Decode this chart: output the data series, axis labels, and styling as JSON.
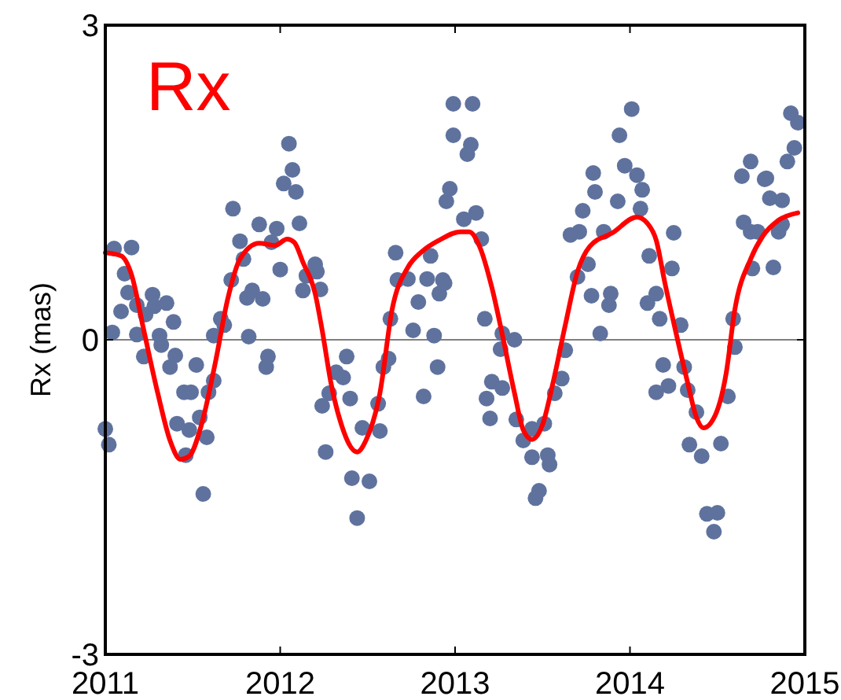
{
  "chart_data": {
    "type": "scatter",
    "title": "Rx",
    "ylabel": "Rx (mas)",
    "xlim": [
      2011,
      2015
    ],
    "ylim": [
      -3,
      3
    ],
    "xticks": [
      2011,
      2012,
      2013,
      2014,
      2015
    ],
    "yticks": [
      -3,
      0,
      3
    ],
    "grid": false,
    "marker": "circle",
    "ref_lines": [
      {
        "axis": "y",
        "value": 0,
        "color": "#808080"
      }
    ],
    "series": [
      {
        "color": "#5f729e",
        "x": [
          2011.0,
          2011.02,
          2011.04,
          2011.05,
          2011.15,
          2011.11,
          2011.09,
          2011.13,
          2011.18,
          2011.18,
          2011.22,
          2011.23,
          2011.27,
          2011.28,
          2011.31,
          2011.32,
          2011.35,
          2011.39,
          2011.4,
          2011.37,
          2011.45,
          2011.49,
          2011.52,
          2011.41,
          2011.48,
          2011.46,
          2011.54,
          2011.58,
          2011.56,
          2011.59,
          2011.62,
          2011.62,
          2011.66,
          2011.68,
          2011.72,
          2011.73,
          2011.77,
          2011.79,
          2011.81,
          2011.82,
          2011.84,
          2011.88,
          2011.9,
          2011.93,
          2011.92,
          2011.95,
          2011.98,
          2012.0,
          2012.02,
          2012.05,
          2012.07,
          2012.09,
          2012.11,
          2012.13,
          2012.15,
          2012.2,
          2012.21,
          2012.23,
          2012.24,
          2012.26,
          2012.28,
          2012.32,
          2012.38,
          2012.36,
          2012.4,
          2012.41,
          2012.44,
          2012.47,
          2012.51,
          2012.56,
          2012.57,
          2012.59,
          2012.62,
          2012.63,
          2012.66,
          2012.67,
          2012.73,
          2012.76,
          2012.79,
          2012.82,
          2012.84,
          2012.86,
          2012.88,
          2012.9,
          2012.91,
          2012.93,
          2012.95,
          2012.97,
          2012.99,
          2012.99,
          2013.1,
          2013.09,
          2013.07,
          2013.05,
          2013.12,
          2013.15,
          2012.94,
          2013.17,
          2013.27,
          2013.34,
          2013.26,
          2013.21,
          2013.18,
          2013.27,
          2013.2,
          2013.35,
          2013.39,
          2013.44,
          2013.51,
          2013.44,
          2013.53,
          2013.54,
          2013.48,
          2013.46,
          2013.57,
          2013.61,
          2013.63,
          2013.7,
          2013.76,
          2013.66,
          2013.71,
          2013.73,
          2013.78,
          2013.79,
          2013.8,
          2013.83,
          2013.85,
          2013.89,
          2013.88,
          2013.93,
          2013.94,
          2013.97,
          2014.04,
          2014.01,
          2014.07,
          2014.06,
          2014.11,
          2014.1,
          2014.15,
          2014.17,
          2014.24,
          2014.25,
          2014.19,
          2014.15,
          2014.22,
          2014.29,
          2014.31,
          2014.33,
          2014.38,
          2014.34,
          2014.41,
          2014.44,
          2014.5,
          2014.48,
          2014.52,
          2014.56,
          2014.6,
          2014.59,
          2014.64,
          2014.69,
          2014.65,
          2014.69,
          2014.73,
          2014.7,
          2014.82,
          2014.77,
          2014.78,
          2014.8,
          2014.87,
          2014.85,
          2014.87,
          2014.9,
          2014.92,
          2014.96,
          2014.94
        ],
        "values": [
          -0.85,
          -1.0,
          0.07,
          0.87,
          0.88,
          0.63,
          0.27,
          0.45,
          0.33,
          0.05,
          -0.16,
          0.24,
          0.43,
          0.32,
          0.04,
          -0.05,
          0.35,
          0.17,
          -0.15,
          -0.26,
          -0.5,
          -0.5,
          -0.24,
          -0.8,
          -0.86,
          -1.1,
          -0.74,
          -0.93,
          -1.47,
          -0.5,
          -0.39,
          0.04,
          0.2,
          0.14,
          0.57,
          1.25,
          0.94,
          0.77,
          0.4,
          0.03,
          0.47,
          1.1,
          0.39,
          -0.16,
          -0.26,
          0.93,
          1.06,
          0.67,
          1.49,
          1.87,
          1.62,
          1.41,
          1.11,
          0.47,
          0.61,
          0.72,
          0.65,
          0.48,
          -0.63,
          -1.07,
          -0.51,
          -0.31,
          -0.16,
          -0.36,
          -0.56,
          -1.32,
          -1.7,
          -0.84,
          -1.35,
          -0.61,
          -0.87,
          -0.26,
          -0.18,
          0.2,
          0.83,
          0.57,
          0.58,
          0.09,
          0.36,
          -0.54,
          0.58,
          0.8,
          0.04,
          -0.26,
          0.44,
          0.57,
          1.32,
          1.44,
          1.95,
          2.25,
          2.25,
          1.86,
          1.77,
          1.15,
          1.21,
          0.96,
          0.54,
          0.2,
          0.06,
          0.0,
          -0.09,
          -0.4,
          -0.56,
          -0.46,
          -0.75,
          -0.76,
          -0.96,
          -0.85,
          -0.8,
          -1.12,
          -1.1,
          -1.19,
          -1.44,
          -1.51,
          -0.51,
          -0.37,
          -0.1,
          0.6,
          0.72,
          1.0,
          1.03,
          1.23,
          0.42,
          1.59,
          1.41,
          0.06,
          1.03,
          0.44,
          0.33,
          1.32,
          1.95,
          1.66,
          1.57,
          2.2,
          1.43,
          1.25,
          0.8,
          0.35,
          0.44,
          0.2,
          0.68,
          1.02,
          -0.24,
          -0.5,
          -0.44,
          0.14,
          -0.26,
          -0.48,
          -0.69,
          -1.0,
          -1.11,
          -1.66,
          -1.65,
          -1.83,
          -0.99,
          -0.54,
          -0.07,
          0.2,
          1.56,
          1.7,
          1.12,
          1.03,
          1.03,
          0.68,
          0.69,
          1.53,
          1.54,
          1.35,
          1.33,
          1.03,
          1.1,
          1.7,
          2.16,
          2.07,
          1.83
        ]
      },
      {
        "type": "line",
        "color": "#ff0000",
        "marker": "none",
        "line_style": "solid",
        "x": [
          2011.0,
          2011.09,
          2011.15,
          2011.22,
          2011.3,
          2011.37,
          2011.43,
          2011.48,
          2011.55,
          2011.63,
          2011.7,
          2011.77,
          2011.88,
          2011.97,
          2012.04,
          2012.08,
          2012.13,
          2012.2,
          2012.24,
          2012.29,
          2012.35,
          2012.44,
          2012.49,
          2012.57,
          2012.64,
          2012.73,
          2012.81,
          2012.91,
          2013.03,
          2013.08,
          2013.14,
          2013.21,
          2013.27,
          2013.34,
          2013.39,
          2013.44,
          2013.5,
          2013.56,
          2013.63,
          2013.7,
          2013.77,
          2013.9,
          2014.04,
          2014.1,
          2014.15,
          2014.2,
          2014.26,
          2014.33,
          2014.38,
          2014.42,
          2014.49,
          2014.55,
          2014.6,
          2014.69,
          2014.76,
          2014.85,
          2014.96
        ],
        "values": [
          0.83,
          0.8,
          0.62,
          0.09,
          -0.51,
          -0.96,
          -1.14,
          -1.11,
          -0.81,
          -0.21,
          0.39,
          0.77,
          0.92,
          0.9,
          0.96,
          0.93,
          0.74,
          0.44,
          0.09,
          -0.41,
          -0.81,
          -1.07,
          -0.96,
          -0.51,
          0.29,
          0.69,
          0.84,
          0.95,
          1.03,
          1.03,
          0.89,
          0.5,
          0.05,
          -0.51,
          -0.86,
          -0.95,
          -0.81,
          -0.41,
          0.14,
          0.65,
          0.89,
          1.02,
          1.17,
          1.11,
          0.95,
          0.54,
          0.09,
          -0.41,
          -0.74,
          -0.84,
          -0.71,
          -0.32,
          0.29,
          0.77,
          0.99,
          1.14,
          1.21
        ]
      }
    ]
  }
}
